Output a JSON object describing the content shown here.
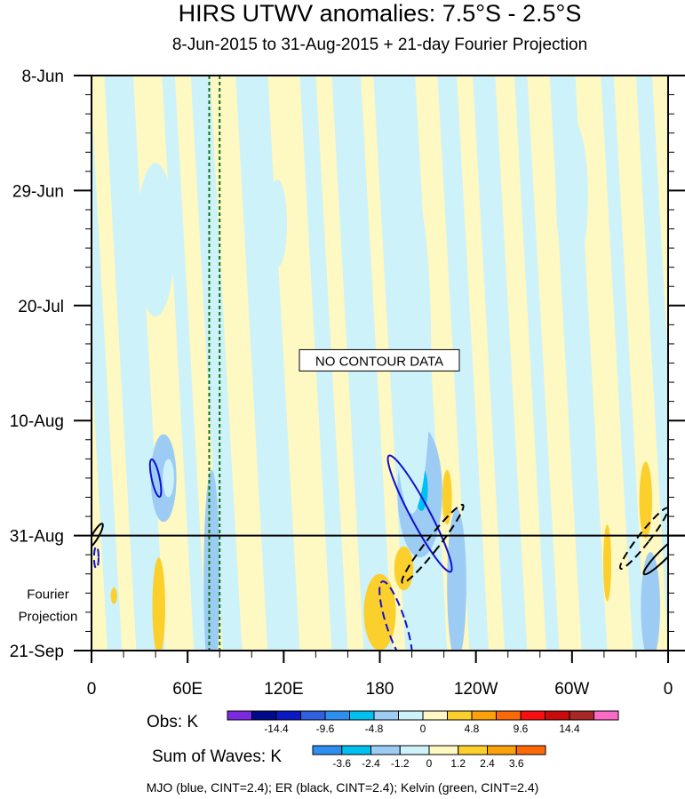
{
  "chart_data": {
    "type": "heatmap",
    "title": "HIRS UTWV anomalies: 7.5°S - 2.5°S",
    "subtitle": "8-Jun-2015 to 31-Aug-2015 + 21-day Fourier Projection",
    "x_ticks": [
      "0",
      "60E",
      "120E",
      "180",
      "120W",
      "60W",
      "0"
    ],
    "x_tick_lon": [
      0,
      60,
      120,
      180,
      240,
      300,
      360
    ],
    "y_ticks": [
      "8-Jun",
      "29-Jun",
      "20-Jul",
      "10-Aug",
      "31-Aug",
      "21-Sep"
    ],
    "y_tick_day": [
      0,
      21,
      42,
      63,
      84,
      105
    ],
    "xlim": [
      0,
      360
    ],
    "ylim_days": [
      0,
      105
    ],
    "observation_end_day": 84,
    "projection_label": [
      "Fourier",
      "Projection"
    ],
    "annotation": "NO CONTOUR DATA",
    "obs_colorbar": {
      "label": "Obs: K",
      "tick_labels": [
        "-14.4",
        "-9.6",
        "-4.8",
        "0",
        "4.8",
        "9.6",
        "14.4"
      ],
      "colors": [
        "#7a2be2",
        "#000a8a",
        "#0a1ac0",
        "#3060e0",
        "#2e8ff0",
        "#00c0f0",
        "#9cccf4",
        "#cdf2fa",
        "#fef8c2",
        "#fcd02c",
        "#fca10a",
        "#fc6a08",
        "#f81010",
        "#c80a0a",
        "#a82828",
        "#fc6ac8"
      ]
    },
    "waves_colorbar": {
      "label": "Sum of Waves: K",
      "tick_labels": [
        "-3.6",
        "-2.4",
        "-1.2",
        "0",
        "1.2",
        "2.4",
        "3.6"
      ],
      "colors": [
        "#2e8ff0",
        "#00c0f0",
        "#9cccf4",
        "#cdf2fa",
        "#fef8c2",
        "#fcd02c",
        "#fca10a",
        "#fc6a08"
      ]
    },
    "wave_contours": {
      "legend": "MJO (blue, CINT=2.4); ER (black, CINT=2.4); Kelvin (green, CINT=2.4)",
      "mjo": [
        {
          "lon": 40,
          "day": 73.5,
          "dlon": 2.5,
          "dday": 3.5,
          "tilt": -12,
          "dashed": false
        },
        {
          "lon": 205,
          "day": 80,
          "dlon": 6,
          "dday": 12,
          "tilt": -28,
          "dashed": false
        },
        {
          "lon": 190,
          "day": 100,
          "dlon": 6,
          "dday": 8,
          "tilt": -18,
          "dashed": true
        },
        {
          "lon": 3,
          "day": 88,
          "dlon": 1.4,
          "dday": 2,
          "tilt": 0,
          "dashed": true
        }
      ],
      "er": [
        {
          "lon": 213,
          "day": 85.5,
          "dlon": 4,
          "dday": 9,
          "tilt": 38,
          "dashed": true
        },
        {
          "lon": 345,
          "day": 84.5,
          "dlon": 3.5,
          "dday": 7,
          "tilt": 38,
          "dashed": true
        },
        {
          "lon": 357,
          "day": 87.5,
          "dlon": 3,
          "dday": 5,
          "tilt": 45,
          "dashed": false
        },
        {
          "lon": 2.5,
          "day": 84,
          "dlon": 2,
          "dday": 2.5,
          "tilt": 30,
          "dashed": false
        }
      ],
      "kelvin_lines_lon": [
        73.5,
        80
      ]
    },
    "anomaly_patches": [
      {
        "lon": 45,
        "day": 73.5,
        "dlon": 8,
        "dday": 8,
        "level": "neg1"
      },
      {
        "lon": 48,
        "day": 73.5,
        "dlon": 3.5,
        "dday": 3.5,
        "level": "neg0"
      },
      {
        "lon": 205,
        "day": 76,
        "dlon": 14,
        "dday": 12,
        "level": "neg1"
      },
      {
        "lon": 206,
        "day": 75.5,
        "dlon": 4,
        "dday": 4,
        "level": "neg2"
      },
      {
        "lon": 228,
        "day": 93,
        "dlon": 6,
        "dday": 14,
        "level": "neg1"
      },
      {
        "lon": 349,
        "day": 97,
        "dlon": 6,
        "dday": 10,
        "level": "neg1"
      },
      {
        "lon": 40,
        "day": 94,
        "dlon": 5,
        "dday": 7,
        "level": "neg0"
      },
      {
        "lon": 75,
        "day": 92,
        "dlon": 5,
        "dday": 20,
        "level": "neg1"
      },
      {
        "lon": 40,
        "day": 30,
        "dlon": 12,
        "dday": 14,
        "level": "neg0"
      },
      {
        "lon": 116,
        "day": 27,
        "dlon": 6,
        "dday": 8,
        "level": "neg0"
      },
      {
        "lon": 300,
        "day": 22,
        "dlon": 10,
        "dday": 14,
        "level": "neg0"
      },
      {
        "lon": 200,
        "day": 50,
        "dlon": 12,
        "dday": 30,
        "level": "neg0"
      },
      {
        "lon": 180,
        "day": 98,
        "dlon": 10,
        "dday": 7,
        "level": "pos1"
      },
      {
        "lon": 195,
        "day": 90,
        "dlon": 6,
        "dday": 4,
        "level": "pos1"
      },
      {
        "lon": 222,
        "day": 77,
        "dlon": 3,
        "dday": 5,
        "level": "pos1"
      },
      {
        "lon": 42,
        "day": 97,
        "dlon": 4,
        "dday": 9,
        "level": "pos1"
      },
      {
        "lon": 346,
        "day": 77.5,
        "dlon": 4,
        "dday": 7,
        "level": "pos1"
      },
      {
        "lon": 322,
        "day": 89,
        "dlon": 2.5,
        "dday": 7,
        "level": "pos1"
      },
      {
        "lon": 14,
        "day": 95,
        "dlon": 2,
        "dday": 1.5,
        "level": "pos1"
      }
    ]
  }
}
